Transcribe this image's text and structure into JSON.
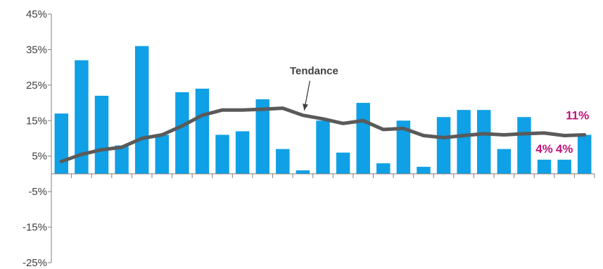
{
  "chart_data": {
    "type": "bar",
    "title": "",
    "xlabel": "",
    "ylabel": "",
    "ylim": [
      -25,
      45
    ],
    "yticks": [
      -25,
      -15,
      -5,
      5,
      15,
      25,
      35,
      45
    ],
    "ytick_labels": [
      "-25%",
      "-15%",
      "-5%",
      "5%",
      "15%",
      "25%",
      "35%",
      "45%"
    ],
    "grid": false,
    "legend": "none",
    "series": [
      {
        "type": "bar",
        "color": "#0fa0e6",
        "values": [
          17,
          32,
          22,
          8,
          36,
          11,
          23,
          24,
          11,
          12,
          21,
          7,
          1,
          15,
          6,
          20,
          3,
          15,
          2,
          16,
          18,
          18,
          7,
          16,
          4,
          4,
          11
        ]
      },
      {
        "type": "line",
        "color": "#5a5a5a",
        "values": [
          3.5,
          5.5,
          6.8,
          7.5,
          10,
          11,
          13.5,
          16.5,
          18,
          18,
          18.2,
          18.5,
          16.5,
          15.5,
          14.2,
          15,
          12.5,
          12.8,
          10.8,
          10.2,
          10.8,
          11.3,
          11,
          11.3,
          11.5,
          10.8,
          11
        ]
      }
    ],
    "annotations": [
      {
        "text": "Tendance",
        "target_index": 12,
        "target_value": 16.5
      }
    ],
    "data_labels": [
      {
        "index": 24,
        "text": "4%"
      },
      {
        "index": 25,
        "text": "4%"
      },
      {
        "index": 26,
        "text": "11%"
      }
    ]
  }
}
